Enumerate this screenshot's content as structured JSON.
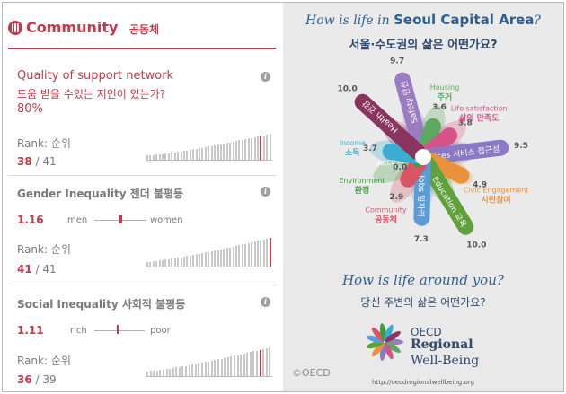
{
  "header": {
    "title": "Community",
    "title_ko": "공동체",
    "icon": "community-icon",
    "color": "#c43a4a"
  },
  "support": {
    "title_en": "Quality of support network",
    "title_ko": "도움 받을 수있는 지인이 있는가?",
    "value": "80%",
    "rank_label": "Rank: 순위",
    "rank": "38",
    "total": "/ 41",
    "rank_number": 38,
    "total_number": 41
  },
  "gender": {
    "title": "Gender Inequality 젠더 불평등",
    "value": "1.16",
    "left_label": "men",
    "right_label": "women",
    "rank_label": "Rank: 순위",
    "rank": "41",
    "total": "/ 41",
    "rank_number": 41,
    "total_number": 41
  },
  "social": {
    "title": "Social Inequality 사회적 불평등",
    "value": "1.11",
    "left_label": "rich",
    "right_label": "poor",
    "rank_label": "Rank: 순위",
    "rank": "36",
    "total": "/ 39",
    "rank_number": 36,
    "total_number": 39
  },
  "right_panel": {
    "title_pre": "How is life in ",
    "title_region": "Seoul Capital Area",
    "title_post": "?",
    "title_ko": "서울·수도권의 삶은 어떤가요?",
    "bottom_title": "How is life around you?",
    "bottom_ko": "당신 주변의 삶은 어떤가요?",
    "logo_line1": "OECD",
    "logo_line2": "Regional",
    "logo_line3": "Well-Being",
    "url": "http://oecdregionalwellbeing.org",
    "copyright": "©OECD"
  },
  "chart_data": {
    "type": "radial-petal",
    "series": [
      {
        "label_en": "Safety",
        "label_ko": "안전",
        "value": 9.7,
        "color": "#9a7cc0"
      },
      {
        "label_en": "Housing",
        "label_ko": "주거",
        "value": 3.6,
        "color": "#5aa95e"
      },
      {
        "label_en": "Life satisfaction",
        "label_ko": "삶의 만족도",
        "value": 3.8,
        "color": "#d8528a"
      },
      {
        "label_en": "Access to services",
        "label_ko": "서비스 접근성",
        "value": 9.5,
        "color": "#8b79c4"
      },
      {
        "label_en": "Civic Engagement",
        "label_ko": "시민참여",
        "value": 4.9,
        "color": "#e8923c"
      },
      {
        "label_en": "Education",
        "label_ko": "교육",
        "value": 10.0,
        "color": "#5fa13a"
      },
      {
        "label_en": "Jobs",
        "label_ko": "일자리",
        "value": 7.3,
        "color": "#5b9bd6"
      },
      {
        "label_en": "Community",
        "label_ko": "공동체",
        "value": 2.9,
        "color": "#d95563"
      },
      {
        "label_en": "Environment",
        "label_ko": "환경",
        "value": 0.0,
        "color": "#3d9d3d"
      },
      {
        "label_en": "Income",
        "label_ko": "소득",
        "value": 3.7,
        "color": "#3aaed0"
      },
      {
        "label_en": "Health",
        "label_ko": "건강",
        "value": 10.0,
        "color": "#8a3560"
      }
    ]
  }
}
